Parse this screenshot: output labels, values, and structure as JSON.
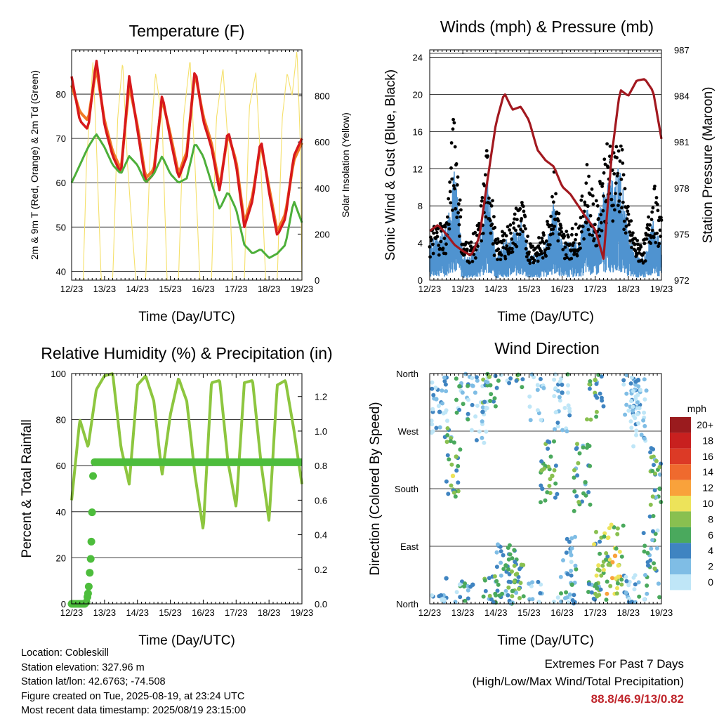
{
  "colors": {
    "temp_red": "#d7191c",
    "temp_orange": "#f07a26",
    "dewpoint_green": "#4daf3a",
    "solar_yellow": "#f5e06a",
    "wind_blue": "#4f93d0",
    "gust_black": "#000000",
    "pressure_maroon": "#a2181f",
    "rh_lightgreen": "#8dc63f",
    "precip_green": "#4dbd3c",
    "extremes_red": "#c0272d"
  },
  "x_ticks": [
    "12/23",
    "13/23",
    "14/23",
    "15/23",
    "16/23",
    "17/23",
    "18/23",
    "19/23"
  ],
  "chart_data": [
    {
      "id": "temperature",
      "type": "line",
      "title": "Temperature (F)",
      "xlabel": "Time (Day/UTC)",
      "ylabel": "2m & 9m T (Red, Orange) & 2m Td (Green)",
      "ylabel_right": "Solar Insolation (Yellow)",
      "ylim": [
        38,
        90
      ],
      "ylim_right": [
        0,
        1000
      ],
      "yticks": [
        40,
        50,
        60,
        70,
        80
      ],
      "yticks_right": [
        0,
        200,
        400,
        600,
        800
      ],
      "x": [
        12.0,
        12.25,
        12.5,
        12.75,
        13.0,
        13.25,
        13.5,
        13.75,
        14.0,
        14.25,
        14.5,
        14.75,
        15.0,
        15.25,
        15.5,
        15.75,
        16.0,
        16.25,
        16.5,
        16.75,
        17.0,
        17.25,
        17.5,
        17.75,
        18.0,
        18.25,
        18.5,
        18.75,
        19.0
      ],
      "series": [
        {
          "name": "2m T",
          "values": [
            84,
            74,
            72,
            88,
            73,
            66,
            62,
            84,
            72,
            60,
            62,
            80,
            70,
            61,
            66,
            86,
            74,
            68,
            58,
            72,
            64,
            50,
            56,
            70,
            58,
            48,
            52,
            66,
            70
          ]
        },
        {
          "name": "9m T",
          "values": [
            82,
            76,
            74,
            86,
            74,
            67,
            63,
            82,
            73,
            61,
            63,
            79,
            71,
            62,
            67,
            85,
            75,
            69,
            59,
            71,
            65,
            51,
            57,
            69,
            59,
            49,
            53,
            65,
            69
          ]
        },
        {
          "name": "2m Td",
          "values": [
            60,
            64,
            68,
            71,
            68,
            64,
            62,
            66,
            64,
            60,
            62,
            66,
            62,
            60,
            61,
            69,
            66,
            60,
            54,
            58,
            54,
            46,
            44,
            45,
            43,
            44,
            46,
            56,
            51
          ]
        },
        {
          "name": "Solar Insolation",
          "axis": "right",
          "x": [
            12.0,
            12.05,
            12.35,
            12.45,
            12.65,
            12.75,
            12.9,
            13.15,
            13.25,
            13.4,
            13.55,
            13.7,
            13.95,
            14.15,
            14.25,
            14.4,
            14.55,
            14.75,
            14.9,
            15.15,
            15.25,
            15.4,
            15.6,
            15.75,
            15.9,
            16.15,
            16.25,
            16.4,
            16.6,
            16.75,
            16.9,
            17.15,
            17.25,
            17.4,
            17.6,
            17.75,
            17.9,
            18.15,
            18.25,
            18.4,
            18.55,
            18.7,
            18.85,
            18.95,
            19.0
          ],
          "values": [
            0,
            0,
            0,
            500,
            950,
            600,
            0,
            0,
            0,
            700,
            950,
            500,
            0,
            0,
            0,
            600,
            900,
            700,
            0,
            0,
            0,
            700,
            960,
            500,
            0,
            0,
            0,
            700,
            920,
            600,
            0,
            0,
            0,
            750,
            900,
            500,
            0,
            0,
            0,
            700,
            900,
            800,
            1000,
            600,
            0
          ]
        }
      ]
    },
    {
      "id": "winds",
      "type": "line",
      "title": "Winds (mph) & Pressure (mb)",
      "xlabel": "Time (Day/UTC)",
      "ylabel": "Sonic Wind & Gust (Blue, Black)",
      "ylabel_right": "Station Pressure (Maroon)",
      "ylim": [
        0,
        24.8
      ],
      "ylim_right": [
        972,
        987
      ],
      "yticks": [
        0,
        4,
        8,
        12,
        16,
        20,
        24
      ],
      "yticks_right": [
        972,
        975,
        978,
        981,
        984,
        987
      ],
      "x": [
        12.0,
        12.25,
        12.5,
        12.75,
        13.0,
        13.25,
        13.5,
        13.75,
        14.0,
        14.25,
        14.5,
        14.75,
        15.0,
        15.25,
        15.5,
        15.75,
        16.0,
        16.25,
        16.5,
        16.75,
        17.0,
        17.25,
        17.5,
        17.75,
        18.0,
        18.25,
        18.5,
        18.75,
        19.0
      ],
      "series": [
        {
          "name": "Sonic Wind",
          "values": [
            3,
            3.5,
            4,
            9,
            2,
            2,
            3,
            8,
            2,
            3,
            3.5,
            5,
            2,
            2,
            3,
            6,
            3,
            3,
            3,
            6,
            4,
            7,
            8,
            9,
            4,
            2,
            2,
            5,
            3
          ]
        },
        {
          "name": "Gust",
          "values": [
            5,
            6,
            6,
            18,
            4,
            4,
            6,
            14,
            4,
            5,
            6,
            9,
            4,
            4,
            5,
            11,
            5,
            5,
            6,
            12,
            7,
            13,
            14,
            15,
            7,
            4,
            4,
            10,
            6
          ]
        },
        {
          "name": "Station Pressure",
          "axis": "right",
          "values": [
            975.2,
            975.6,
            975.0,
            974.3,
            973.9,
            973.6,
            974.8,
            978.6,
            982.2,
            984.2,
            983.1,
            983.3,
            982.4,
            980.5,
            979.8,
            979.4,
            978.1,
            977.6,
            976.8,
            976.0,
            975.3,
            973.4,
            980.2,
            984.4,
            984.0,
            985.0,
            985.1,
            984.3,
            981.2
          ]
        }
      ]
    },
    {
      "id": "rh_precip",
      "type": "line",
      "title": "Relative Humidity (%) & Precipitation (in)",
      "xlabel": "Time (Day/UTC)",
      "ylabel": "Percent & Total Rainfall",
      "ylim": [
        0,
        100
      ],
      "ylim_right": [
        0,
        1.333
      ],
      "yticks": [
        0,
        20,
        40,
        60,
        80,
        100
      ],
      "yticks_right_labels": [
        "0.0",
        "0.2",
        "0.4",
        "0.6",
        "0.8",
        "1.0",
        "1.2"
      ],
      "x": [
        12.0,
        12.25,
        12.5,
        12.75,
        13.0,
        13.25,
        13.5,
        13.75,
        14.0,
        14.25,
        14.5,
        14.75,
        15.0,
        15.25,
        15.5,
        15.75,
        16.0,
        16.25,
        16.5,
        16.75,
        17.0,
        17.25,
        17.5,
        17.75,
        18.0,
        18.25,
        18.5,
        18.75,
        19.0
      ],
      "series": [
        {
          "name": "Relative Humidity",
          "values": [
            45,
            80,
            68,
            93,
            99,
            100,
            68,
            52,
            95,
            99,
            88,
            56,
            82,
            98,
            88,
            56,
            32,
            96,
            97,
            62,
            42,
            96,
            97,
            62,
            36,
            95,
            97,
            76,
            52
          ]
        },
        {
          "name": "Total Precipitation",
          "axis": "right",
          "x": [
            12.0,
            12.1,
            12.2,
            12.3,
            12.4,
            12.45,
            12.5,
            12.52,
            12.55,
            12.58,
            12.6,
            12.62,
            12.65,
            12.7,
            19.0
          ],
          "values": [
            0,
            0,
            0,
            0,
            0,
            0.01,
            0.06,
            0.1,
            0.18,
            0.26,
            0.36,
            0.53,
            0.74,
            0.82,
            0.82
          ]
        }
      ]
    },
    {
      "id": "wind_direction",
      "type": "scatter",
      "title": "Wind Direction",
      "xlabel": "Time (Day/UTC)",
      "ylabel": "Direction (Colored By Speed)",
      "ylim": [
        0,
        360
      ],
      "ytick_labels": [
        "North",
        "East",
        "South",
        "West",
        "North"
      ],
      "colorbar": {
        "title": "mph",
        "labels": [
          "20+",
          "18",
          "16",
          "14",
          "12",
          "10",
          "8",
          "6",
          "4",
          "2",
          "0"
        ],
        "colors": [
          "#9a1b1e",
          "#c8201f",
          "#dc3a26",
          "#ef6a2e",
          "#f9a23b",
          "#ede35a",
          "#89c050",
          "#4aa95d",
          "#3f84c1",
          "#7fbde5",
          "#bfe6f7"
        ]
      },
      "points": [
        {
          "x": 12.2,
          "y": 320,
          "s": 2
        },
        {
          "x": 12.3,
          "y": 300,
          "s": 3
        },
        {
          "x": 12.5,
          "y": 40,
          "s": 4
        },
        {
          "x": 12.7,
          "y": 200,
          "s": 10
        },
        {
          "x": 12.8,
          "y": 230,
          "s": 8
        },
        {
          "x": 12.9,
          "y": 340,
          "s": 6
        },
        {
          "x": 13.3,
          "y": 30,
          "s": 4
        },
        {
          "x": 13.6,
          "y": 300,
          "s": 3
        },
        {
          "x": 13.8,
          "y": 355,
          "s": 8
        },
        {
          "x": 14.3,
          "y": 60,
          "s": 5
        },
        {
          "x": 14.5,
          "y": 20,
          "s": 6
        },
        {
          "x": 15.4,
          "y": 180,
          "s": 4
        },
        {
          "x": 15.7,
          "y": 200,
          "s": 8
        },
        {
          "x": 16.0,
          "y": 330,
          "s": 3
        },
        {
          "x": 16.3,
          "y": 30,
          "s": 5
        },
        {
          "x": 16.7,
          "y": 190,
          "s": 6
        },
        {
          "x": 17.0,
          "y": 350,
          "s": 8
        },
        {
          "x": 17.1,
          "y": 60,
          "s": 10
        },
        {
          "x": 17.6,
          "y": 75,
          "s": 12
        },
        {
          "x": 17.7,
          "y": 60,
          "s": 10
        },
        {
          "x": 18.3,
          "y": 350,
          "s": 3
        },
        {
          "x": 18.6,
          "y": 60,
          "s": 4
        },
        {
          "x": 18.8,
          "y": 55,
          "s": 8
        },
        {
          "x": 18.95,
          "y": 180,
          "s": 5
        }
      ]
    }
  ],
  "info": {
    "location": "Location: Cobleskill",
    "elevation": "Station elevation: 327.96 m",
    "latlon": "Station lat/lon: 42.6763; -74.508",
    "created": "Figure created on Tue, 2025-08-19, at 23:24 UTC",
    "recent": "Most recent data timestamp: 2025/08/19 23:15:00"
  },
  "extremes": {
    "line1": "Extremes For Past 7 Days",
    "line2": "(High/Low/Max Wind/Total Precipitation)",
    "values": "88.8/46.9/13/0.82"
  }
}
